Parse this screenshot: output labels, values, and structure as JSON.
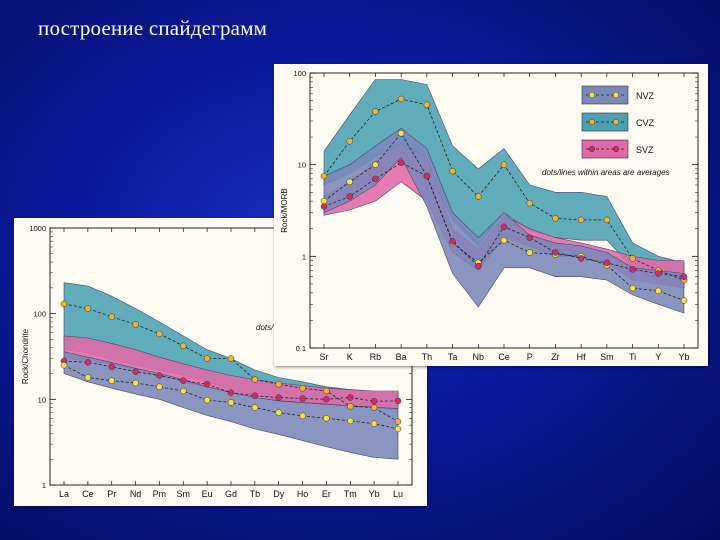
{
  "slide": {
    "title": "построение спайдеграмм"
  },
  "colors": {
    "nvz_fill": "#7b88b8",
    "cvz_fill": "#4aa0b2",
    "svz_fill": "#e06aa8",
    "nvz_marker": "#f2e43c",
    "cvz_marker": "#f2b32c",
    "svz_marker": "#d42a6a",
    "line": "#222222"
  },
  "legend": {
    "items": [
      {
        "key": "nvz",
        "label": "NVZ"
      },
      {
        "key": "cvz",
        "label": "CVZ"
      },
      {
        "key": "svz",
        "label": "SVZ"
      }
    ],
    "note": "dots/lines within areas are averages",
    "note_partial": "dots/"
  },
  "chart_data": [
    {
      "id": "morb",
      "type": "line",
      "scale": "log",
      "ylabel": "Rock/MORB",
      "ylim": [
        0.1,
        100
      ],
      "yticks": [
        "100",
        "10",
        "1",
        "0.1"
      ],
      "yticks_values": [
        100,
        10,
        1,
        0.1
      ],
      "categories": [
        "Sr",
        "K",
        "Rb",
        "Ba",
        "Th",
        "Ta",
        "Nb",
        "Ce",
        "P",
        "Zr",
        "Hf",
        "Sm",
        "Ti",
        "Y",
        "Yb"
      ],
      "bands": [
        {
          "key": "cvz",
          "upper": [
            14,
            35,
            85,
            85,
            75,
            16,
            9,
            15,
            6,
            5,
            5,
            4.5,
            1.4,
            1.0,
            0.85
          ],
          "lower": [
            6,
            8,
            12,
            17,
            9,
            2.5,
            1.3,
            3,
            1.9,
            1.6,
            1.5,
            1.5,
            0.75,
            0.55,
            0.45
          ]
        },
        {
          "key": "svz",
          "upper": [
            4.5,
            6.5,
            11,
            17,
            12,
            2.0,
            1.2,
            2.8,
            2.0,
            1.6,
            1.4,
            1.2,
            1.0,
            0.9,
            0.9
          ],
          "lower": [
            2.8,
            3.2,
            4.0,
            6.5,
            4.0,
            1.1,
            0.7,
            1.6,
            1.3,
            1.0,
            1.0,
            0.85,
            0.55,
            0.5,
            0.45
          ]
        },
        {
          "key": "nvz",
          "upper": [
            7.5,
            10,
            16,
            25,
            15,
            3.0,
            1.6,
            3.0,
            1.7,
            1.4,
            1.3,
            1.1,
            0.75,
            0.7,
            0.65
          ],
          "lower": [
            3,
            4,
            6,
            12,
            3.5,
            0.65,
            0.28,
            0.75,
            0.75,
            0.6,
            0.6,
            0.55,
            0.38,
            0.3,
            0.24
          ]
        }
      ],
      "series": [
        {
          "key": "cvz",
          "values": [
            7.5,
            18,
            38,
            52,
            45,
            8.5,
            4.5,
            10,
            3.8,
            2.6,
            2.5,
            2.5,
            0.95,
            0.7,
            0.55
          ]
        },
        {
          "key": "nvz",
          "values": [
            4.0,
            6.5,
            10,
            22,
            7.5,
            1.4,
            0.85,
            1.5,
            1.1,
            1.05,
            1.0,
            0.8,
            0.45,
            0.42,
            0.33
          ]
        },
        {
          "key": "svz",
          "values": [
            3.5,
            4.5,
            7,
            10.5,
            7.5,
            1.45,
            0.78,
            2.1,
            1.6,
            1.1,
            0.95,
            0.85,
            0.72,
            0.65,
            0.6
          ]
        }
      ]
    },
    {
      "id": "chondrite",
      "type": "line",
      "scale": "log",
      "ylabel": "Rock/Chondrite",
      "ylim": [
        1,
        1000
      ],
      "yticks": [
        "1000",
        "100",
        "10",
        "1"
      ],
      "yticks_values": [
        1000,
        100,
        10,
        1
      ],
      "categories": [
        "La",
        "Ce",
        "Pr",
        "Nd",
        "Pm",
        "Sm",
        "Eu",
        "Gd",
        "Tb",
        "Dy",
        "Ho",
        "Er",
        "Tm",
        "Yb",
        "Lu"
      ],
      "bands": [
        {
          "key": "cvz",
          "upper": [
            230,
            210,
            160,
            115,
            80,
            55,
            38,
            30,
            22,
            18,
            16,
            14,
            13,
            12,
            12
          ],
          "lower": [
            38,
            35,
            29,
            25,
            22,
            19,
            16,
            13,
            11,
            10,
            9.5,
            9,
            8.5,
            8,
            7.5
          ]
        },
        {
          "key": "svz",
          "upper": [
            55,
            52,
            45,
            38,
            31,
            26,
            22,
            19,
            17,
            15.5,
            14.5,
            13.5,
            13,
            12.5,
            12.5
          ],
          "lower": [
            30,
            28,
            26,
            22,
            19,
            16,
            14,
            12,
            10.5,
            9.7,
            9.2,
            8.8,
            8.4,
            8,
            7.8
          ]
        },
        {
          "key": "nvz",
          "upper": [
            36,
            31,
            27,
            23,
            20,
            17,
            14,
            12,
            10.5,
            9.6,
            9.1,
            8.7,
            8.4,
            8.1,
            7.8
          ],
          "lower": [
            20,
            16,
            13.5,
            11.5,
            10,
            8,
            6.5,
            5.5,
            4.5,
            3.9,
            3.3,
            2.8,
            2.4,
            2.1,
            2.0
          ]
        }
      ],
      "series": [
        {
          "key": "cvz",
          "values": [
            130,
            115,
            92,
            75,
            58,
            42,
            30,
            30,
            17,
            15,
            13.5,
            12.5,
            8.3,
            8,
            5.5
          ]
        },
        {
          "key": "svz",
          "values": [
            28,
            27,
            24,
            21,
            19,
            16.5,
            15,
            12,
            11,
            10.5,
            10.2,
            10,
            10.5,
            9.5,
            9.6
          ]
        },
        {
          "key": "nvz",
          "values": [
            25,
            18,
            16.5,
            15.5,
            14,
            12.5,
            9.8,
            9.2,
            8,
            7,
            6.4,
            6,
            5.6,
            5.2,
            4.5
          ]
        }
      ]
    }
  ]
}
